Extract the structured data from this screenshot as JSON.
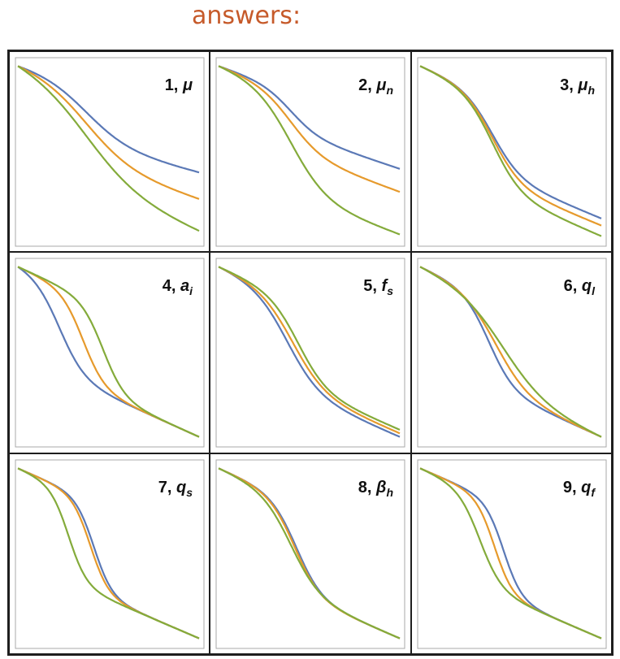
{
  "heading": "answers:",
  "colors": {
    "s1": "#5b79b6",
    "s2": "#e69a2c",
    "s3": "#84ab3b"
  },
  "chart_data": [
    {
      "type": "line",
      "label_num": "1, ",
      "label_sym": "μ",
      "label_sub": "",
      "x": [
        0,
        1
      ],
      "series": [
        {
          "color": "#5b79b6",
          "values": [
            0.98,
            0.38
          ],
          "center": 0.38,
          "width": 0.12,
          "height": 0.34
        },
        {
          "color": "#e69a2c",
          "values": [
            0.98,
            0.23
          ],
          "center": 0.38,
          "width": 0.13,
          "height": 0.42
        },
        {
          "color": "#84ab3b",
          "values": [
            0.98,
            0.05
          ],
          "center": 0.38,
          "width": 0.15,
          "height": 0.5
        }
      ]
    },
    {
      "type": "line",
      "label_num": "2, ",
      "label_sym": "μ",
      "label_sub": "n",
      "x": [
        0,
        1
      ],
      "series": [
        {
          "color": "#5b79b6",
          "values": [
            0.98,
            0.4
          ],
          "center": 0.4,
          "width": 0.08,
          "height": 0.24
        },
        {
          "color": "#e69a2c",
          "values": [
            0.98,
            0.27
          ],
          "center": 0.4,
          "width": 0.09,
          "height": 0.34
        },
        {
          "color": "#84ab3b",
          "values": [
            0.98,
            0.03
          ],
          "center": 0.4,
          "width": 0.1,
          "height": 0.58
        }
      ]
    },
    {
      "type": "line",
      "label_num": "3, ",
      "label_sym": "μ",
      "label_sub": "h",
      "x": [
        0,
        1
      ],
      "series": [
        {
          "color": "#5b79b6",
          "values": [
            0.98,
            0.12
          ],
          "center": 0.4,
          "width": 0.08,
          "height": 0.44
        },
        {
          "color": "#e69a2c",
          "values": [
            0.98,
            0.08
          ],
          "center": 0.4,
          "width": 0.08,
          "height": 0.48
        },
        {
          "color": "#84ab3b",
          "values": [
            0.98,
            0.02
          ],
          "center": 0.4,
          "width": 0.08,
          "height": 0.52
        }
      ]
    },
    {
      "type": "line",
      "label_num": "4, ",
      "label_sym": "a",
      "label_sub": "i",
      "x": [
        0,
        1
      ],
      "series": [
        {
          "color": "#5b79b6",
          "values": [
            0.98,
            0.02
          ],
          "center": 0.23,
          "width": 0.07,
          "height": 0.5
        },
        {
          "color": "#e69a2c",
          "values": [
            0.98,
            0.02
          ],
          "center": 0.36,
          "width": 0.06,
          "height": 0.5
        },
        {
          "color": "#84ab3b",
          "values": [
            0.98,
            0.02
          ],
          "center": 0.47,
          "width": 0.06,
          "height": 0.5
        }
      ]
    },
    {
      "type": "line",
      "label_num": "5, ",
      "label_sym": "f",
      "label_sub": "s",
      "x": [
        0,
        1
      ],
      "series": [
        {
          "color": "#5b79b6",
          "values": [
            0.98,
            0.02
          ],
          "center": 0.38,
          "width": 0.09,
          "height": 0.52
        },
        {
          "color": "#e69a2c",
          "values": [
            0.98,
            0.04
          ],
          "center": 0.41,
          "width": 0.09,
          "height": 0.5
        },
        {
          "color": "#84ab3b",
          "values": [
            0.98,
            0.06
          ],
          "center": 0.44,
          "width": 0.08,
          "height": 0.48
        }
      ]
    },
    {
      "type": "line",
      "label_num": "6, ",
      "label_sym": "q",
      "label_sub": "l",
      "x": [
        0,
        1
      ],
      "series": [
        {
          "color": "#5b79b6",
          "values": [
            0.98,
            0.02
          ],
          "center": 0.38,
          "width": 0.07,
          "height": 0.5
        },
        {
          "color": "#e69a2c",
          "values": [
            0.98,
            0.02
          ],
          "center": 0.42,
          "width": 0.09,
          "height": 0.5
        },
        {
          "color": "#84ab3b",
          "values": [
            0.98,
            0.02
          ],
          "center": 0.46,
          "width": 0.12,
          "height": 0.5
        }
      ]
    },
    {
      "type": "line",
      "label_num": "7, ",
      "label_sym": "q",
      "label_sub": "s",
      "x": [
        0,
        1
      ],
      "series": [
        {
          "color": "#5b79b6",
          "values": [
            0.98,
            0.02
          ],
          "center": 0.42,
          "width": 0.05,
          "height": 0.52
        },
        {
          "color": "#e69a2c",
          "values": [
            0.98,
            0.02
          ],
          "center": 0.4,
          "width": 0.05,
          "height": 0.52
        },
        {
          "color": "#84ab3b",
          "values": [
            0.98,
            0.02
          ],
          "center": 0.28,
          "width": 0.05,
          "height": 0.52
        }
      ]
    },
    {
      "type": "line",
      "label_num": "8, ",
      "label_sym": "β",
      "label_sub": "h",
      "x": [
        0,
        1
      ],
      "series": [
        {
          "color": "#5b79b6",
          "values": [
            0.98,
            0.02
          ],
          "center": 0.43,
          "width": 0.07,
          "height": 0.52
        },
        {
          "color": "#e69a2c",
          "values": [
            0.98,
            0.02
          ],
          "center": 0.42,
          "width": 0.07,
          "height": 0.52
        },
        {
          "color": "#84ab3b",
          "values": [
            0.98,
            0.02
          ],
          "center": 0.4,
          "width": 0.08,
          "height": 0.52
        }
      ]
    },
    {
      "type": "line",
      "label_num": "9, ",
      "label_sym": "q",
      "label_sub": "f",
      "x": [
        0,
        1
      ],
      "series": [
        {
          "color": "#5b79b6",
          "values": [
            0.98,
            0.02
          ],
          "center": 0.46,
          "width": 0.05,
          "height": 0.52
        },
        {
          "color": "#e69a2c",
          "values": [
            0.98,
            0.02
          ],
          "center": 0.41,
          "width": 0.05,
          "height": 0.52
        },
        {
          "color": "#84ab3b",
          "values": [
            0.98,
            0.02
          ],
          "center": 0.33,
          "width": 0.06,
          "height": 0.52
        }
      ]
    }
  ]
}
